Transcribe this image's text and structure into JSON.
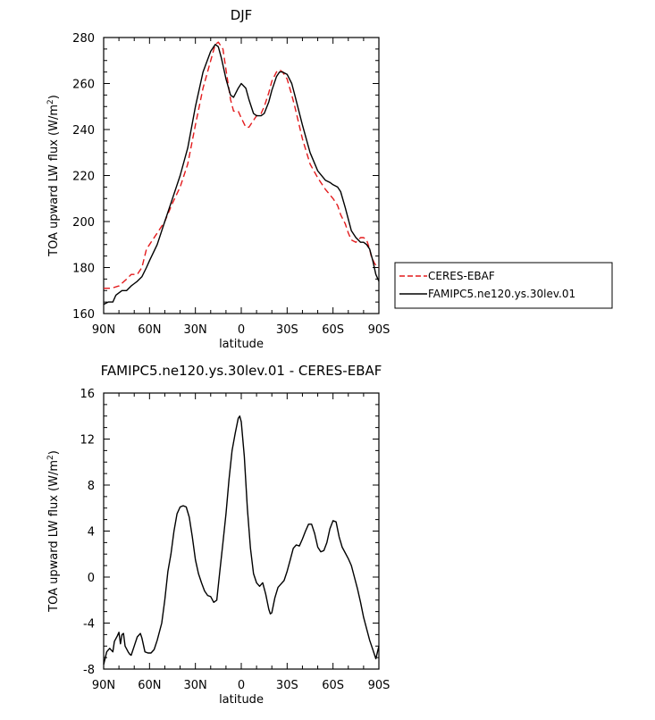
{
  "chart_data": [
    {
      "type": "line",
      "title": "DJF",
      "xlabel": "latitude",
      "ylabel": "TOA upward LW flux (W/m",
      "ylabel_sup": "2",
      "ylabel_close": ")",
      "xlim": [
        90,
        -90
      ],
      "ylim": [
        160,
        280
      ],
      "x_ticks": [
        90,
        60,
        30,
        0,
        -30,
        -60,
        -90
      ],
      "x_tick_labels": [
        "90N",
        "60N",
        "30N",
        "0",
        "30S",
        "60S",
        "90S"
      ],
      "y_ticks": [
        160,
        180,
        200,
        220,
        240,
        260,
        280
      ],
      "y_tick_labels": [
        "160",
        "180",
        "200",
        "220",
        "240",
        "260",
        "280"
      ],
      "legend_position": "right",
      "series": [
        {
          "name": "CERES-EBAF",
          "color": "#e31a1c",
          "dash": "dashed",
          "x": [
            90,
            85,
            80,
            75,
            72,
            68,
            65,
            62,
            60,
            55,
            50,
            45,
            40,
            35,
            30,
            25,
            20,
            17,
            15,
            12,
            10,
            7,
            5,
            2,
            0,
            -3,
            -5,
            -8,
            -10,
            -13,
            -15,
            -18,
            -20,
            -23,
            -25,
            -27,
            -30,
            -33,
            -35,
            -40,
            -45,
            -50,
            -55,
            -60,
            -63,
            -65,
            -68,
            -70,
            -72,
            -75,
            -78,
            -80,
            -82,
            -84,
            -85,
            -87,
            -88,
            -90
          ],
          "y": [
            171,
            171,
            172,
            175,
            177,
            177,
            180,
            188,
            190,
            195,
            200,
            208,
            215,
            225,
            242,
            258,
            270,
            277,
            278,
            275,
            266,
            253,
            248,
            248,
            245,
            241,
            241,
            244,
            246,
            247,
            250,
            256,
            261,
            265,
            266,
            265,
            262,
            255,
            250,
            236,
            225,
            219,
            214,
            210,
            207,
            203,
            199,
            195,
            192,
            191,
            193,
            193,
            192,
            188,
            185,
            182,
            181,
            180
          ]
        },
        {
          "name": "FAMIPC5.ne120.ys.30lev.01",
          "color": "#000000",
          "dash": "solid",
          "x": [
            90,
            87,
            84,
            82,
            80,
            78,
            75,
            72,
            70,
            68,
            65,
            62,
            60,
            55,
            50,
            45,
            40,
            35,
            30,
            25,
            20,
            17,
            15,
            13,
            10,
            7,
            5,
            2,
            0,
            -3,
            -5,
            -8,
            -10,
            -13,
            -15,
            -18,
            -20,
            -23,
            -25,
            -27,
            -30,
            -33,
            -35,
            -40,
            -45,
            -50,
            -55,
            -58,
            -60,
            -63,
            -65,
            -68,
            -70,
            -72,
            -75,
            -78,
            -80,
            -82,
            -84,
            -86,
            -88,
            -90
          ],
          "y": [
            164,
            165,
            165,
            168,
            169,
            170,
            170,
            172,
            173,
            174,
            176,
            180,
            183,
            190,
            200,
            210,
            220,
            232,
            250,
            265,
            274,
            277,
            276,
            271,
            262,
            255,
            254,
            258,
            260,
            258,
            253,
            247,
            246,
            246,
            247,
            252,
            257,
            263,
            265,
            265,
            264,
            260,
            255,
            242,
            230,
            222,
            218,
            217,
            216,
            215,
            213,
            206,
            201,
            196,
            193,
            191,
            191,
            190,
            188,
            183,
            177,
            174
          ]
        }
      ]
    },
    {
      "type": "line",
      "title": "FAMIPC5.ne120.ys.30lev.01 - CERES-EBAF",
      "xlabel": "latitude",
      "ylabel": "TOA upward LW flux (W/m",
      "ylabel_sup": "2",
      "ylabel_close": ")",
      "xlim": [
        90,
        -90
      ],
      "ylim": [
        -8,
        16
      ],
      "x_ticks": [
        90,
        60,
        30,
        0,
        -30,
        -60,
        -90
      ],
      "x_tick_labels": [
        "90N",
        "60N",
        "30N",
        "0",
        "30S",
        "60S",
        "90S"
      ],
      "y_ticks": [
        -8,
        -4,
        0,
        4,
        8,
        12,
        16
      ],
      "y_tick_labels": [
        "-8",
        "-4",
        "0",
        "4",
        "8",
        "12",
        "16"
      ],
      "series": [
        {
          "color": "#000000",
          "dash": "solid",
          "x": [
            90,
            88,
            86,
            84,
            83,
            81,
            80,
            79,
            78,
            77,
            76,
            74,
            73,
            72,
            70,
            68,
            66,
            65,
            63,
            61,
            59,
            57,
            55,
            52,
            50,
            48,
            46,
            44,
            42,
            40,
            38,
            36,
            34,
            32,
            30,
            28,
            26,
            24,
            22,
            20,
            18,
            16,
            14,
            12,
            10,
            8,
            6,
            4,
            2,
            1,
            0,
            -2,
            -4,
            -6,
            -8,
            -10,
            -12,
            -14,
            -16,
            -18,
            -19,
            -20,
            -22,
            -24,
            -26,
            -28,
            -30,
            -32,
            -34,
            -36,
            -38,
            -40,
            -42,
            -44,
            -46,
            -48,
            -50,
            -52,
            -54,
            -56,
            -58,
            -60,
            -62,
            -64,
            -66,
            -68,
            -70,
            -72,
            -74,
            -76,
            -78,
            -80,
            -82,
            -84,
            -86,
            -88,
            -90
          ],
          "y": [
            -7.6,
            -6.5,
            -6.2,
            -6.5,
            -5.6,
            -5.1,
            -4.8,
            -5.8,
            -5.0,
            -4.9,
            -6.0,
            -6.5,
            -6.7,
            -6.8,
            -6.0,
            -5.2,
            -4.9,
            -5.3,
            -6.5,
            -6.6,
            -6.6,
            -6.3,
            -5.5,
            -4.0,
            -2.0,
            0.5,
            2.0,
            4.0,
            5.5,
            6.1,
            6.2,
            6.1,
            5.2,
            3.5,
            1.5,
            0.3,
            -0.5,
            -1.2,
            -1.6,
            -1.7,
            -2.2,
            -2.0,
            0.5,
            3.0,
            5.5,
            8.5,
            11.0,
            12.5,
            13.8,
            14.0,
            13.5,
            10.5,
            6.0,
            2.5,
            0.3,
            -0.5,
            -0.8,
            -0.5,
            -1.5,
            -2.8,
            -3.2,
            -3.1,
            -1.8,
            -0.9,
            -0.6,
            -0.3,
            0.5,
            1.5,
            2.5,
            2.8,
            2.7,
            3.3,
            4.0,
            4.6,
            4.6,
            3.8,
            2.6,
            2.2,
            2.3,
            3.0,
            4.2,
            4.9,
            4.8,
            3.5,
            2.6,
            2.1,
            1.6,
            1.0,
            0.0,
            -1.0,
            -2.2,
            -3.5,
            -4.5,
            -5.5,
            -6.3,
            -7.1,
            -6.0
          ]
        }
      ]
    }
  ]
}
